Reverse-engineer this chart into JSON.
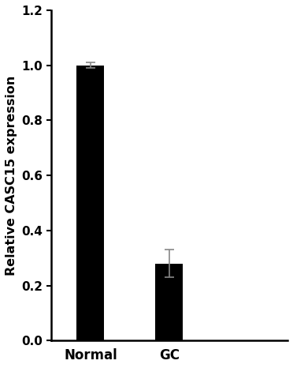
{
  "categories": [
    "Normal",
    "GC"
  ],
  "values": [
    1.0,
    0.28
  ],
  "errors": [
    0.01,
    0.05
  ],
  "bar_color": "#000000",
  "bar_width": 0.35,
  "ylabel": "Relative CASC15 expression",
  "ylim": [
    0,
    1.2
  ],
  "yticks": [
    0.0,
    0.2,
    0.4,
    0.6,
    0.8,
    1.0,
    1.2
  ],
  "ylabel_fontsize": 11.5,
  "tick_fontsize": 11,
  "xlabel_fontsize": 12,
  "background_color": "#ffffff",
  "error_color": "#888888",
  "error_capsize": 4,
  "error_linewidth": 1.2
}
